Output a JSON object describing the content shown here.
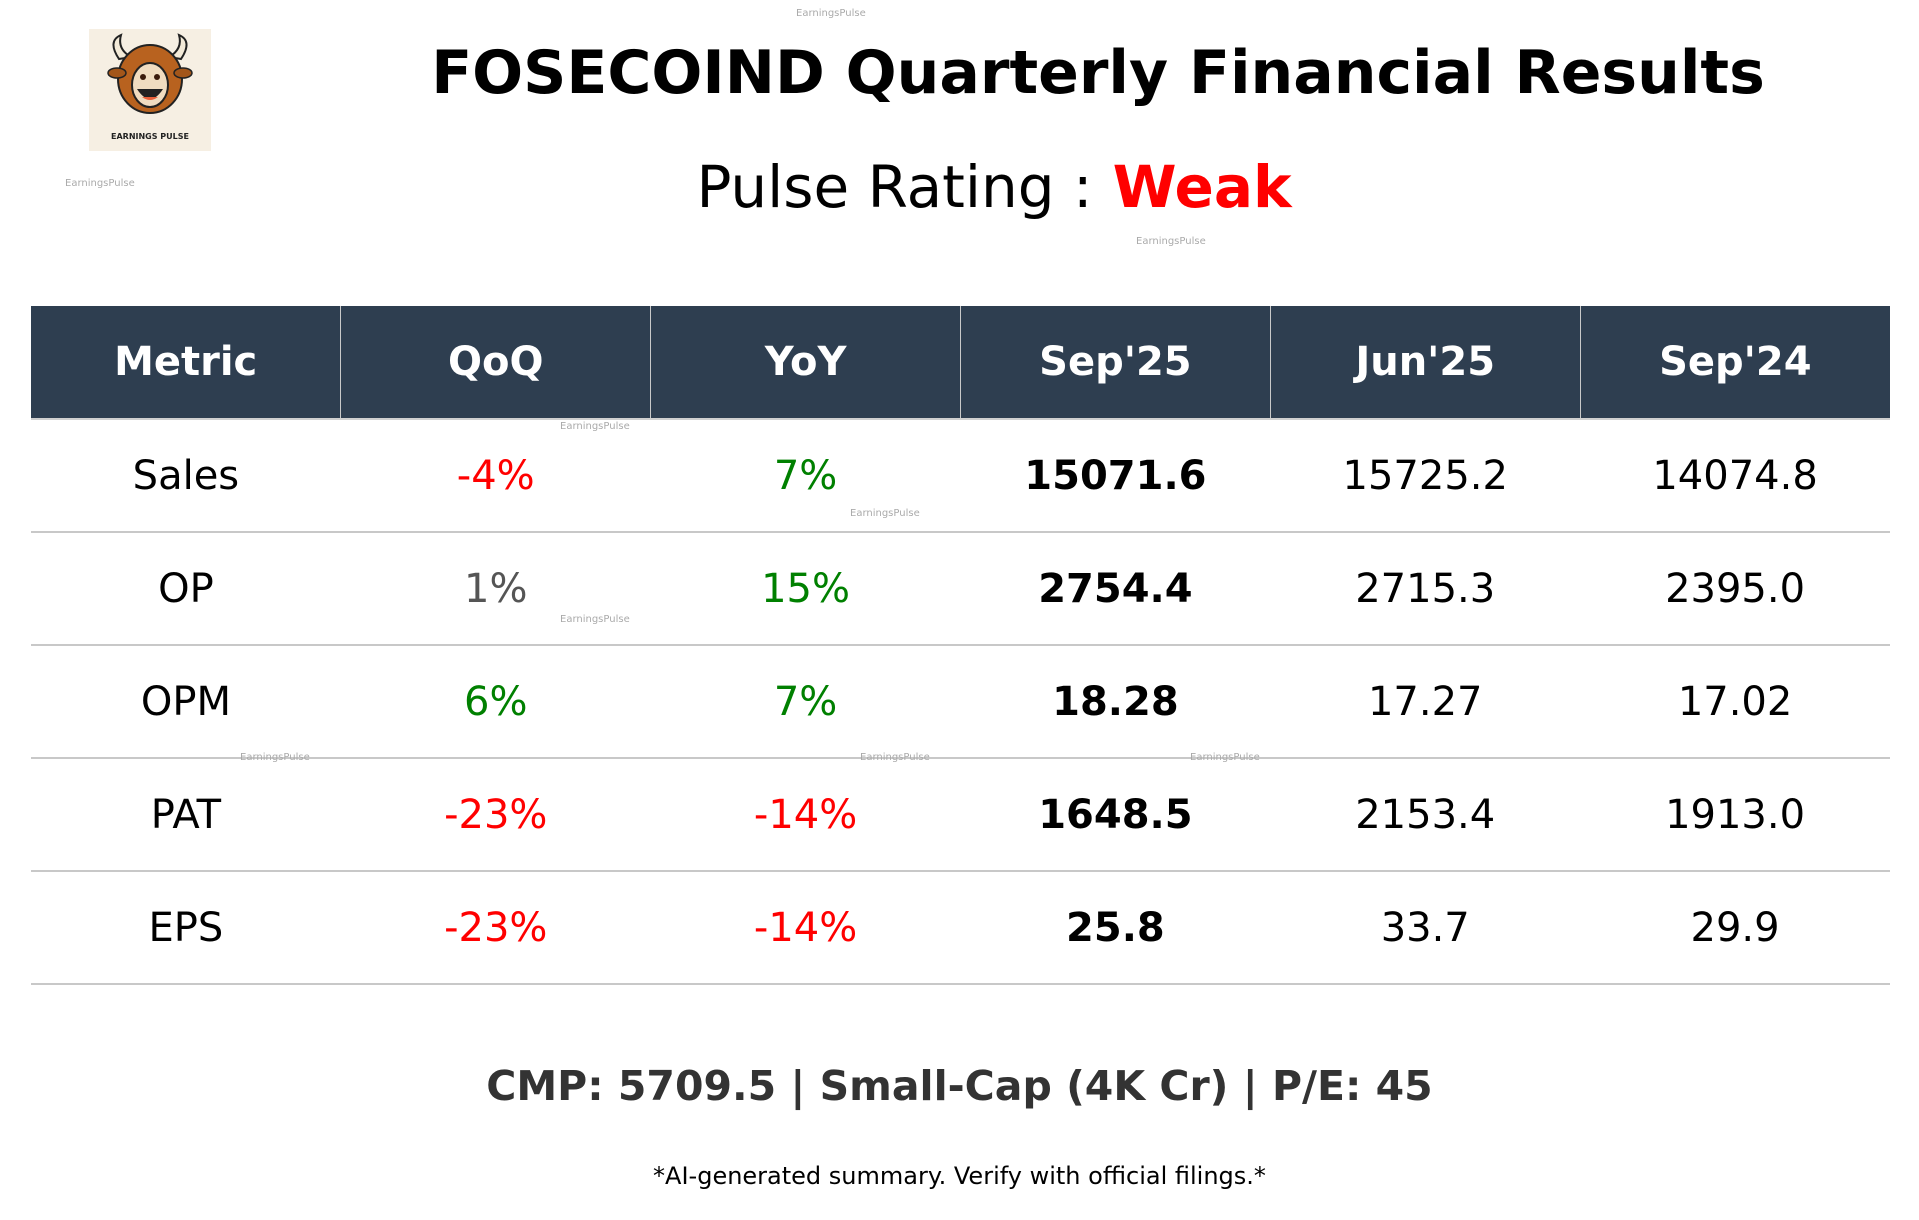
{
  "logo": {
    "text": "EARNINGS PULSE",
    "icon": "bull-icon"
  },
  "header": {
    "title": "FOSECOIND Quarterly Financial Results",
    "rating_label": "Pulse Rating :",
    "rating_value": "Weak",
    "rating_color": "#ff0000"
  },
  "table": {
    "columns": [
      "Metric",
      "QoQ",
      "YoY",
      "Sep'25",
      "Jun'25",
      "Sep'24"
    ],
    "rows": [
      {
        "metric": "Sales",
        "qoq": "-4%",
        "qoq_color": "#ff0000",
        "yoy": "7%",
        "yoy_color": "#008000",
        "sep25": "15071.6",
        "jun25": "15725.2",
        "sep24": "14074.8"
      },
      {
        "metric": "OP",
        "qoq": "1%",
        "qoq_color": "#555555",
        "yoy": "15%",
        "yoy_color": "#008000",
        "sep25": "2754.4",
        "jun25": "2715.3",
        "sep24": "2395.0"
      },
      {
        "metric": "OPM",
        "qoq": "6%",
        "qoq_color": "#008000",
        "yoy": "7%",
        "yoy_color": "#008000",
        "sep25": "18.28",
        "jun25": "17.27",
        "sep24": "17.02"
      },
      {
        "metric": "PAT",
        "qoq": "-23%",
        "qoq_color": "#ff0000",
        "yoy": "-14%",
        "yoy_color": "#ff0000",
        "sep25": "1648.5",
        "jun25": "2153.4",
        "sep24": "1913.0"
      },
      {
        "metric": "EPS",
        "qoq": "-23%",
        "qoq_color": "#ff0000",
        "yoy": "-14%",
        "yoy_color": "#ff0000",
        "sep25": "25.8",
        "jun25": "33.7",
        "sep24": "29.9"
      }
    ]
  },
  "footer": {
    "cmp_line": "CMP: 5709.5 | Small-Cap (4K Cr) | P/E: 45",
    "note": "*AI-generated summary. Verify with official filings.*"
  },
  "watermark": "EarningsPulse",
  "colors": {
    "header_bg": "#2e3e50"
  }
}
